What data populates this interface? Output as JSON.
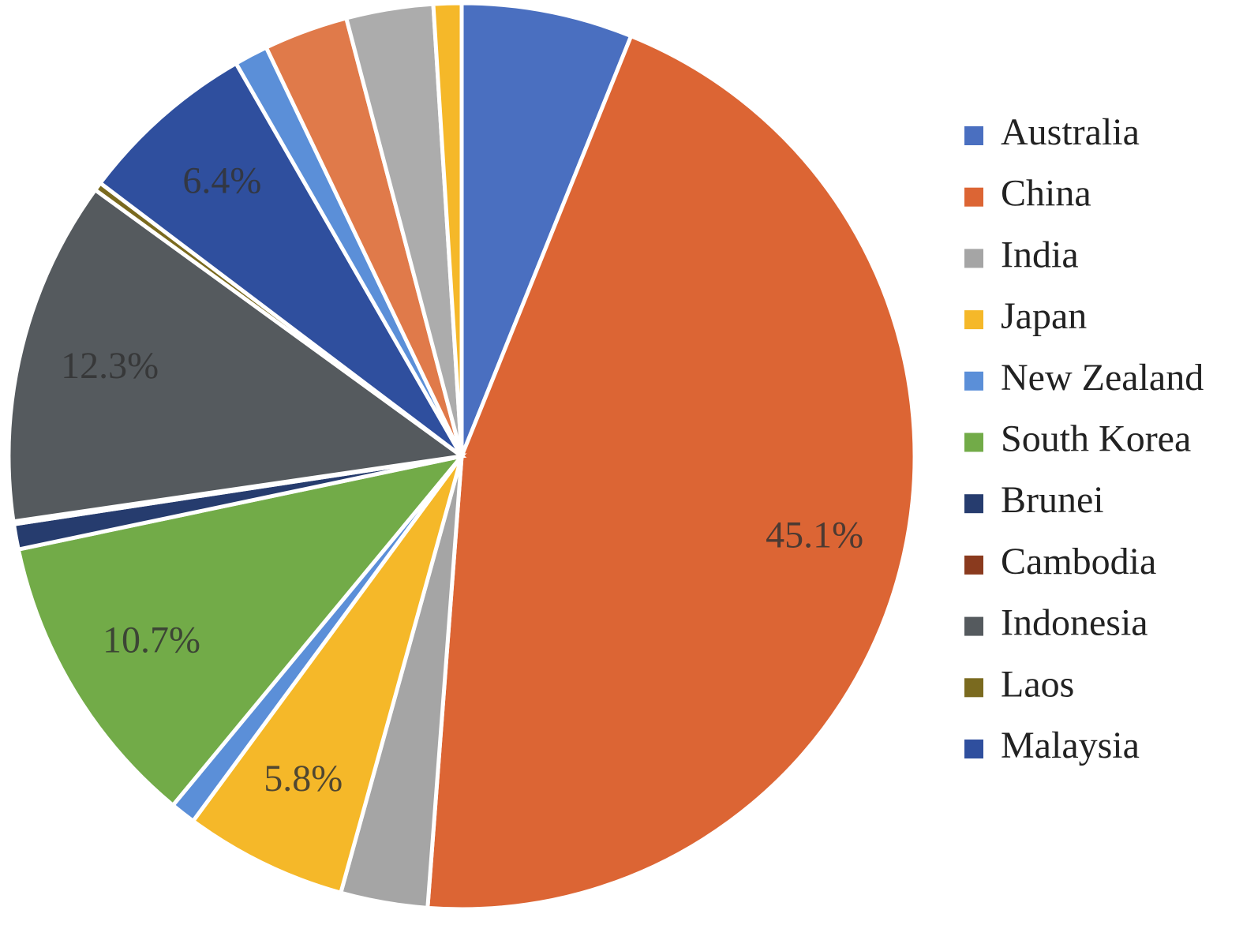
{
  "chart_data": {
    "type": "pie",
    "categories": [
      "Australia",
      "China",
      "India",
      "Japan",
      "New Zealand",
      "South Korea",
      "Brunei",
      "Cambodia",
      "Indonesia",
      "Laos",
      "Malaysia",
      null,
      null,
      null,
      null
    ],
    "values": [
      6.1,
      45.1,
      3.1,
      5.8,
      0.9,
      10.7,
      0.9,
      0.1,
      12.3,
      0.3,
      6.4,
      1.2,
      3.0,
      3.1,
      1.0
    ],
    "value_labels": [
      null,
      "45.1%",
      null,
      "5.8%",
      null,
      "10.7%",
      null,
      null,
      "12.3%",
      null,
      "6.4%",
      null,
      null,
      null,
      null
    ],
    "colors": [
      "#4a6fc0",
      "#dc6534",
      "#a5a5a5",
      "#f5b829",
      "#5b8fd8",
      "#72ab48",
      "#263c6e",
      "#8a3a1e",
      "#555a5e",
      "#7a6a1f",
      "#2f4f9e",
      "#5b8fd8",
      "#e07a4a",
      "#acacac",
      "#f5b829"
    ],
    "legend": "right"
  }
}
